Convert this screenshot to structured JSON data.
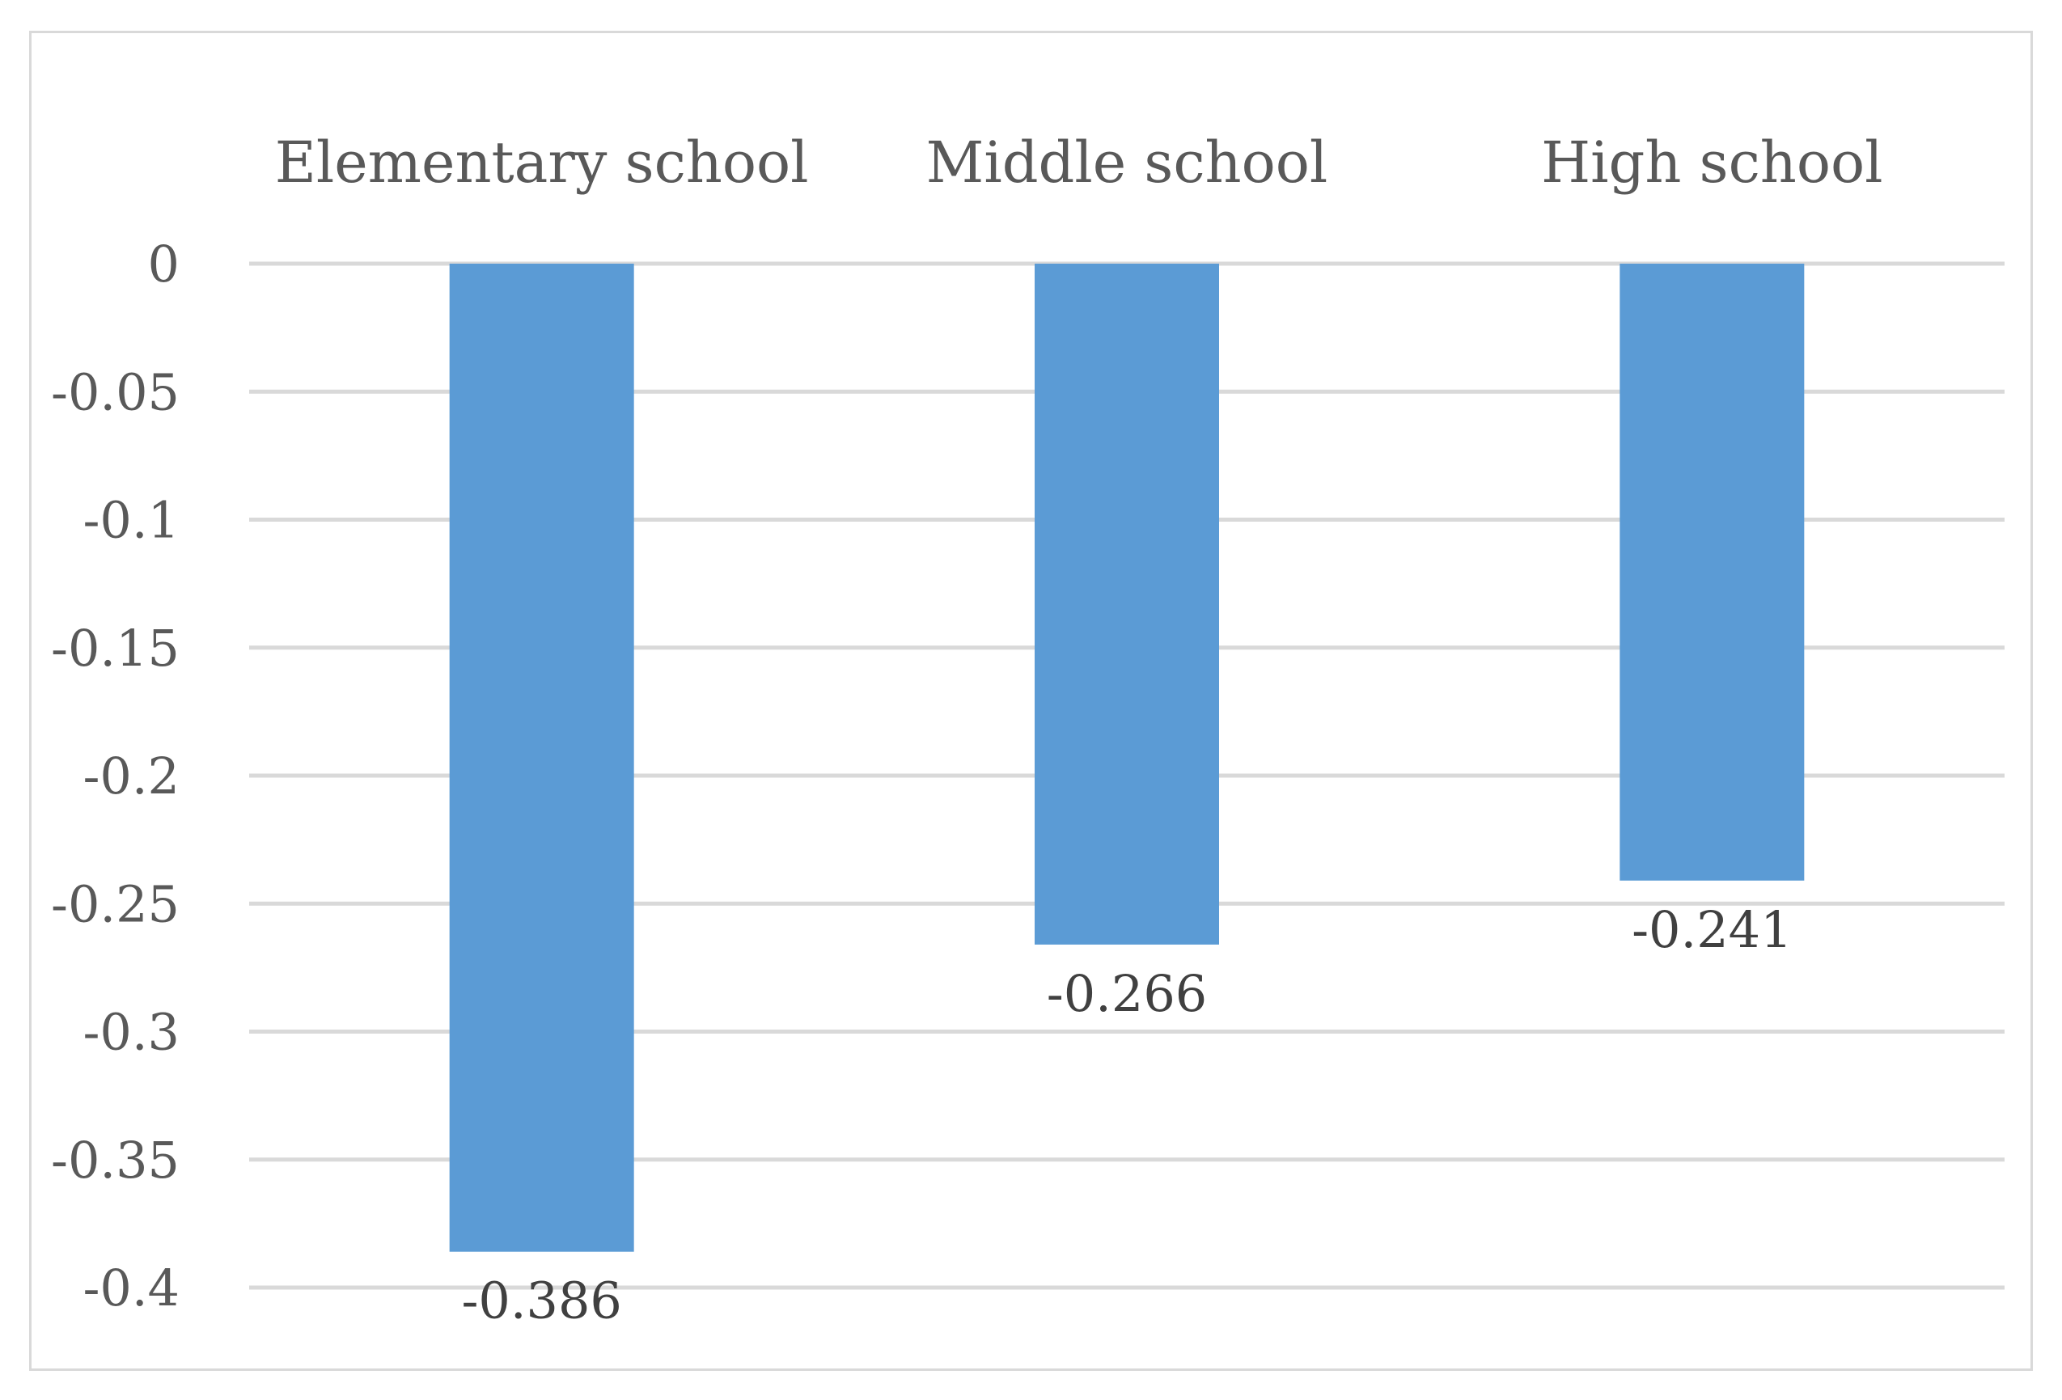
{
  "chart_data": {
    "type": "bar",
    "categories": [
      "Elementary school",
      "Middle school",
      "High school"
    ],
    "values": [
      -0.386,
      -0.266,
      -0.241
    ],
    "data_labels": [
      "-0.386",
      "-0.266",
      "-0.241"
    ],
    "title": "",
    "xlabel": "",
    "ylabel": "",
    "ylim": [
      -0.4,
      0
    ],
    "yticks": [
      0,
      -0.05,
      -0.1,
      -0.15,
      -0.2,
      -0.25,
      -0.3,
      -0.35,
      -0.4
    ],
    "ytick_labels": [
      "0",
      "-0.05",
      "-0.1",
      "-0.15",
      "-0.2",
      "-0.25",
      "-0.3",
      "-0.35",
      "-0.4"
    ],
    "category_axis_position": "top",
    "grid": true,
    "legend": "none",
    "bar_color": "#5b9bd5",
    "grid_color": "#d9d9d9",
    "frame_color": "#d9d9d9"
  }
}
